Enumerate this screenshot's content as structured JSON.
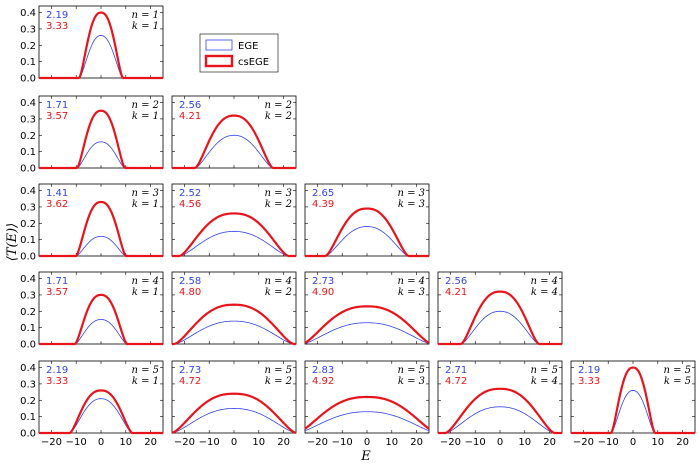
{
  "figure": {
    "ylabel": "⟨T(E)⟩",
    "xlabel": "E",
    "colors": {
      "EGE": "#3344ee",
      "csEGE": "#e8141b"
    }
  },
  "legend": {
    "entries": [
      "EGE",
      "csEGE"
    ]
  },
  "chart_data": {
    "type": "line",
    "layout": "lower-triangular grid of subplots, rows n=1..5, columns k=1..n",
    "xlim": [
      -25,
      25
    ],
    "ylim": [
      0,
      0.44
    ],
    "xticks": [
      -20,
      -10,
      0,
      10,
      20
    ],
    "yticks": [
      0.0,
      0.1,
      0.2,
      0.3,
      0.4
    ],
    "ytick_labels": [
      "0.0",
      "0.1",
      "0.2",
      "0.3",
      "0.4"
    ],
    "xtick_labels": [
      "−20",
      "−10",
      "0",
      "10",
      "20"
    ],
    "series_names": [
      "EGE",
      "csEGE"
    ],
    "panels": [
      {
        "n": 1,
        "k": 1,
        "n_label": "n = 1",
        "k_label": "k = 1",
        "val_ege": "2.19",
        "val_cs": "3.33",
        "peak_ege": 0.26,
        "peak_cs": 0.4,
        "halfwidth": 4.2
      },
      {
        "n": 2,
        "k": 1,
        "n_label": "n = 2",
        "k_label": "k = 1",
        "val_ege": "1.71",
        "val_cs": "3.57",
        "peak_ege": 0.16,
        "peak_cs": 0.35,
        "halfwidth": 4.6
      },
      {
        "n": 2,
        "k": 2,
        "n_label": "n = 2",
        "k_label": "k = 2",
        "val_ege": "2.56",
        "val_cs": "4.21",
        "peak_ege": 0.2,
        "peak_cs": 0.32,
        "halfwidth": 7.5
      },
      {
        "n": 3,
        "k": 1,
        "n_label": "n = 3",
        "k_label": "k = 1",
        "val_ege": "1.41",
        "val_cs": "3.62",
        "peak_ege": 0.12,
        "peak_cs": 0.33,
        "halfwidth": 4.8
      },
      {
        "n": 3,
        "k": 2,
        "n_label": "n = 3",
        "k_label": "k = 2",
        "val_ege": "2.52",
        "val_cs": "4.56",
        "peak_ege": 0.15,
        "peak_cs": 0.26,
        "halfwidth": 10.5
      },
      {
        "n": 3,
        "k": 3,
        "n_label": "n = 3",
        "k_label": "k = 3",
        "val_ege": "2.65",
        "val_cs": "4.39",
        "peak_ege": 0.18,
        "peak_cs": 0.29,
        "halfwidth": 8.0
      },
      {
        "n": 4,
        "k": 1,
        "n_label": "n = 4",
        "k_label": "k = 1",
        "val_ege": "1.71",
        "val_cs": "3.57",
        "peak_ege": 0.15,
        "peak_cs": 0.3,
        "halfwidth": 5.0
      },
      {
        "n": 4,
        "k": 2,
        "n_label": "n = 4",
        "k_label": "k = 2",
        "val_ege": "2.58",
        "val_cs": "4.80",
        "peak_ege": 0.14,
        "peak_cs": 0.24,
        "halfwidth": 11.5
      },
      {
        "n": 4,
        "k": 3,
        "n_label": "n = 4",
        "k_label": "k = 3",
        "val_ege": "2.73",
        "val_cs": "4.90",
        "peak_ege": 0.13,
        "peak_cs": 0.23,
        "halfwidth": 12.5
      },
      {
        "n": 4,
        "k": 4,
        "n_label": "n = 4",
        "k_label": "k = 4",
        "val_ege": "2.56",
        "val_cs": "4.21",
        "peak_ege": 0.2,
        "peak_cs": 0.32,
        "halfwidth": 7.5
      },
      {
        "n": 5,
        "k": 1,
        "n_label": "n = 5",
        "k_label": "k = 1",
        "val_ege": "2.19",
        "val_cs": "3.33",
        "peak_ege": 0.21,
        "peak_cs": 0.26,
        "halfwidth": 6.0
      },
      {
        "n": 5,
        "k": 2,
        "n_label": "n = 5",
        "k_label": "k = 2",
        "val_ege": "2.73",
        "val_cs": "4.72",
        "peak_ege": 0.15,
        "peak_cs": 0.24,
        "halfwidth": 12.0
      },
      {
        "n": 5,
        "k": 3,
        "n_label": "n = 5",
        "k_label": "k = 3",
        "val_ege": "2.83",
        "val_cs": "4.92",
        "peak_ege": 0.13,
        "peak_cs": 0.22,
        "halfwidth": 13.5
      },
      {
        "n": 5,
        "k": 4,
        "n_label": "n = 5",
        "k_label": "k = 4",
        "val_ege": "2.71",
        "val_cs": "4.72",
        "peak_ege": 0.16,
        "peak_cs": 0.27,
        "halfwidth": 10.5
      },
      {
        "n": 5,
        "k": 5,
        "n_label": "n = 5",
        "k_label": "k = 5",
        "val_ege": "2.19",
        "val_cs": "3.33",
        "peak_ege": 0.26,
        "peak_cs": 0.4,
        "halfwidth": 4.2
      }
    ]
  }
}
